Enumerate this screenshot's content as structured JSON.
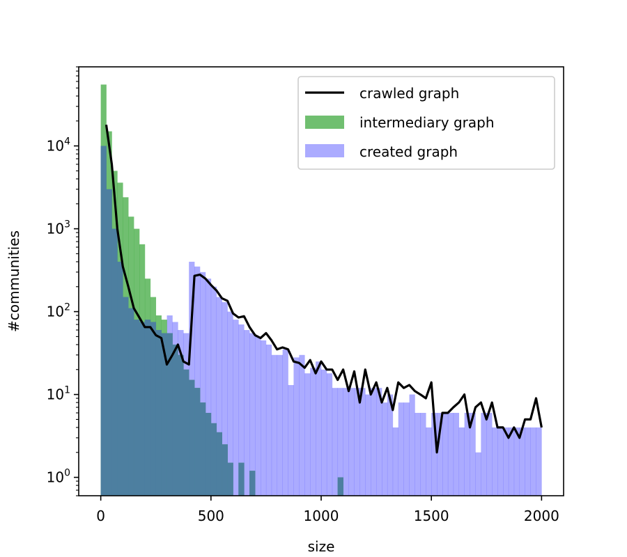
{
  "chart_data": {
    "type": "histogram",
    "title": "",
    "xlabel": "size",
    "ylabel": "#communities",
    "xlim": [
      -100,
      2100
    ],
    "ylim": [
      0.6,
      90000
    ],
    "yscale": "log",
    "x_ticks": [
      0,
      500,
      1000,
      1500,
      2000
    ],
    "x_tick_labels": [
      "0",
      "500",
      "1000",
      "1500",
      "2000"
    ],
    "y_ticks": [
      1,
      10,
      100,
      1000,
      10000
    ],
    "y_tick_labels": [
      {
        "base": "10",
        "exp": "0"
      },
      {
        "base": "10",
        "exp": "1"
      },
      {
        "base": "10",
        "exp": "2"
      },
      {
        "base": "10",
        "exp": "3"
      },
      {
        "base": "10",
        "exp": "4"
      }
    ],
    "legend_position": "top-right",
    "colors": {
      "crawled": "#000000",
      "intermediary": "#2ca02c",
      "created": "#0000ff",
      "overlap": "#4d7fa0"
    },
    "series": [
      {
        "name": "crawled graph",
        "kind": "line",
        "x": [
          25,
          50,
          75,
          100,
          125,
          150,
          175,
          200,
          225,
          250,
          275,
          300,
          325,
          350,
          375,
          400,
          425,
          450,
          475,
          500,
          525,
          550,
          575,
          600,
          625,
          650,
          675,
          700,
          725,
          750,
          775,
          800,
          825,
          850,
          875,
          900,
          925,
          950,
          975,
          1000,
          1025,
          1050,
          1075,
          1100,
          1125,
          1150,
          1175,
          1200,
          1225,
          1250,
          1275,
          1300,
          1325,
          1350,
          1375,
          1400,
          1425,
          1450,
          1475,
          1500,
          1525,
          1550,
          1575,
          1600,
          1625,
          1650,
          1675,
          1700,
          1725,
          1750,
          1775,
          1800,
          1825,
          1850,
          1875,
          1900,
          1925,
          1950,
          1975,
          2000
        ],
        "y": [
          18000,
          6000,
          1000,
          350,
          200,
          110,
          85,
          65,
          65,
          52,
          48,
          23,
          30,
          40,
          25,
          23,
          270,
          280,
          250,
          210,
          180,
          145,
          135,
          95,
          85,
          88,
          65,
          52,
          48,
          55,
          45,
          35,
          37,
          35,
          25,
          24,
          21,
          26,
          18,
          25,
          20,
          20,
          15,
          20,
          11,
          19,
          8,
          20,
          10,
          14,
          8,
          12,
          6.5,
          14,
          12,
          13,
          11,
          10,
          9,
          14,
          2,
          6,
          6,
          7,
          8,
          10,
          4,
          7,
          8,
          5,
          8,
          4,
          4,
          3,
          4,
          3,
          5,
          5,
          9,
          4
        ]
      },
      {
        "name": "intermediary graph",
        "kind": "histogram",
        "bin_start": 0,
        "bin_width": 25,
        "values": [
          55000,
          15000,
          5000,
          3600,
          2400,
          1400,
          1000,
          650,
          250,
          150,
          90,
          80,
          55,
          40,
          30,
          20,
          15,
          12,
          8,
          6,
          4.5,
          3.5,
          2.5,
          1.5,
          0,
          1.5,
          0,
          1.2,
          0,
          0,
          0,
          0,
          0,
          0,
          0,
          0,
          0,
          0,
          0,
          0,
          0,
          0,
          0,
          1,
          0,
          0,
          0,
          0,
          0,
          0,
          0,
          0,
          0,
          0,
          0,
          0,
          0,
          0,
          0,
          0,
          0,
          0,
          0,
          0,
          0,
          0,
          0,
          0,
          0,
          0,
          0,
          0,
          0,
          0,
          0,
          0,
          0,
          0,
          0,
          0
        ]
      },
      {
        "name": "created graph",
        "kind": "histogram",
        "bin_start": 0,
        "bin_width": 25,
        "values": [
          10000,
          3000,
          1000,
          400,
          150,
          110,
          80,
          75,
          80,
          75,
          60,
          55,
          90,
          75,
          60,
          55,
          400,
          350,
          300,
          250,
          200,
          150,
          130,
          100,
          80,
          70,
          60,
          55,
          50,
          45,
          40,
          30,
          30,
          35,
          13,
          28,
          30,
          18,
          21,
          25,
          20,
          18,
          12,
          12,
          12,
          12,
          12,
          12,
          10,
          12,
          12,
          8,
          10,
          4,
          8,
          8,
          10,
          6,
          6,
          4,
          6,
          6,
          6,
          6,
          6,
          4,
          6,
          6,
          2,
          6,
          6,
          4,
          4,
          4,
          4,
          4,
          4,
          4,
          4,
          4
        ]
      }
    ]
  }
}
